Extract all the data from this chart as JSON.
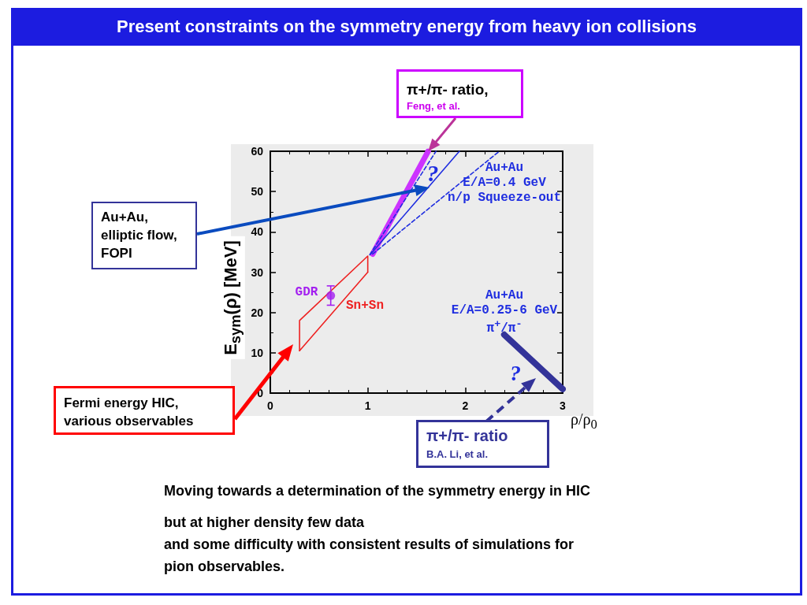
{
  "chart_data": {
    "type": "line",
    "title": "Present constraints on the symmetry energy from heavy ion collisions",
    "xlabel": "ρ/ρ$_{0}$",
    "ylabel": "E$_{sym}$(ρ) [MeV]",
    "xlim": [
      0,
      3
    ],
    "xticks": [
      0,
      1,
      2,
      3
    ],
    "ylim": [
      0,
      60
    ],
    "yticks": [
      0,
      10,
      20,
      30,
      40,
      50,
      60
    ],
    "series": [
      {
        "color": "#ee2222",
        "x": [
          0.3,
          0.3,
          1,
          1
        ],
        "values": [
          10.5,
          18,
          34,
          30
        ]
      },
      {
        "color": "#ee2222",
        "x": [
          0.3,
          1
        ],
        "values": [
          10.5,
          30
        ]
      },
      {
        "type": "scatter",
        "color": "#a31ff0",
        "marker": "circle",
        "x": [
          0.62
        ],
        "values": [
          24.2
        ],
        "errors": [
          [
            21.8,
            26.6
          ]
        ]
      },
      {
        "color": "#cc33ff",
        "x": [
          1.05,
          1.62
        ],
        "values": [
          34.5,
          60
        ]
      },
      {
        "color": "#1f2ee0",
        "line_style": "dashed",
        "x": [
          1.02,
          1.7
        ],
        "values": [
          34.3,
          60
        ]
      },
      {
        "color": "#1f2ee0",
        "x": [
          1.03,
          1.94
        ],
        "values": [
          34.5,
          60
        ]
      },
      {
        "color": "#1f2ee0",
        "line_style": "dashed",
        "x": [
          1.05,
          2.35
        ],
        "values": [
          34.5,
          60
        ]
      },
      {
        "color": "#333399",
        "x": [
          2.4,
          3
        ],
        "values": [
          14.5,
          1
        ]
      }
    ],
    "annotations": [
      {
        "text": "π+/π- ratio,\nFeng, et al.",
        "x": 1.62,
        "y": 60
      },
      "Au+Au,\nelliptic flow,\nFOPI",
      "Fermi energy HIC,\nvarious observables",
      "π+/π- ratio\nB.A. Li, et al.",
      "Au+Au\nE/A=0.4 GeV\nn/p Squeeze-out",
      "Au+Au\nE/A=0.25-6 GeV\nπ$^{+}$/π$^{-}$",
      "GDR",
      "Sn+Sn",
      "?",
      "?",
      "Moving towards a determination of the symmetry energy in HIC",
      "but at higher density few data\nand some difficulty with consistent results of simulations  for\npion observables."
    ]
  }
}
